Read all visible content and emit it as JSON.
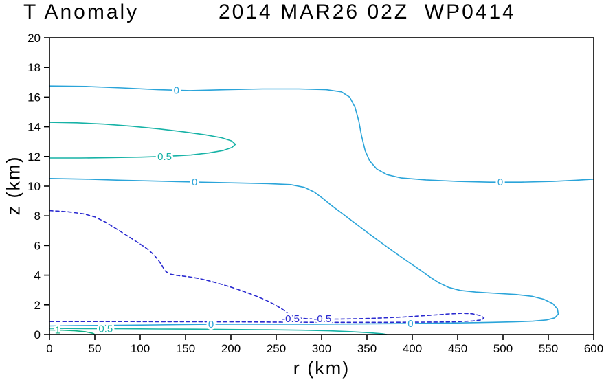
{
  "chart_data": {
    "type": "contour",
    "title_left": "T Anomaly",
    "title_right": "2014 MAR26 02Z  WP0414",
    "xlabel": "r (km)",
    "ylabel": "z (km)",
    "xlim": [
      0,
      600
    ],
    "ylim": [
      0,
      20
    ],
    "x_ticks": [
      0,
      50,
      100,
      150,
      200,
      250,
      300,
      350,
      400,
      450,
      500,
      550,
      600
    ],
    "y_ticks": [
      0,
      2,
      4,
      6,
      8,
      10,
      12,
      14,
      16,
      18,
      20
    ],
    "grid": false,
    "frame_color": "#000000",
    "contours": [
      {
        "level": 0,
        "label": "0",
        "color": "#2aa4d9",
        "style": "solid",
        "labels": [
          [
            140,
            16.45
          ],
          [
            497,
            10.28
          ]
        ],
        "points": [
          [
            0,
            16.75
          ],
          [
            40,
            16.72
          ],
          [
            80,
            16.62
          ],
          [
            120,
            16.5
          ],
          [
            155,
            16.44
          ],
          [
            195,
            16.5
          ],
          [
            235,
            16.55
          ],
          [
            275,
            16.55
          ],
          [
            305,
            16.5
          ],
          [
            322,
            16.35
          ],
          [
            331,
            16.0
          ],
          [
            337,
            15.3
          ],
          [
            341,
            14.4
          ],
          [
            344,
            13.4
          ],
          [
            348,
            12.4
          ],
          [
            353,
            11.7
          ],
          [
            361,
            11.15
          ],
          [
            372,
            10.78
          ],
          [
            388,
            10.55
          ],
          [
            415,
            10.42
          ],
          [
            450,
            10.32
          ],
          [
            485,
            10.27
          ],
          [
            520,
            10.27
          ],
          [
            555,
            10.32
          ],
          [
            580,
            10.4
          ],
          [
            600,
            10.47
          ]
        ]
      },
      {
        "level": 0,
        "label": "0",
        "color": "#2aa4d9",
        "style": "solid",
        "labels": [
          [
            160,
            10.27
          ],
          [
            178,
            0.7
          ],
          [
            398,
            0.75
          ]
        ],
        "points": [
          [
            0,
            10.52
          ],
          [
            40,
            10.47
          ],
          [
            80,
            10.4
          ],
          [
            120,
            10.34
          ],
          [
            160,
            10.28
          ],
          [
            200,
            10.22
          ],
          [
            240,
            10.17
          ],
          [
            266,
            10.1
          ],
          [
            281,
            9.92
          ],
          [
            292,
            9.6
          ],
          [
            302,
            9.15
          ],
          [
            312,
            8.65
          ],
          [
            324,
            8.1
          ],
          [
            337,
            7.5
          ],
          [
            351,
            6.85
          ],
          [
            365,
            6.22
          ],
          [
            379,
            5.6
          ],
          [
            393,
            5.0
          ],
          [
            407,
            4.42
          ],
          [
            419,
            3.9
          ],
          [
            429,
            3.5
          ],
          [
            440,
            3.18
          ],
          [
            453,
            2.97
          ],
          [
            470,
            2.86
          ],
          [
            492,
            2.78
          ],
          [
            514,
            2.7
          ],
          [
            532,
            2.58
          ],
          [
            545,
            2.38
          ],
          [
            555,
            2.08
          ],
          [
            560,
            1.72
          ],
          [
            561,
            1.38
          ],
          [
            557,
            1.12
          ],
          [
            548,
            0.98
          ],
          [
            533,
            0.9
          ],
          [
            512,
            0.85
          ],
          [
            488,
            0.82
          ],
          [
            462,
            0.79
          ],
          [
            436,
            0.77
          ],
          [
            410,
            0.75
          ],
          [
            384,
            0.73
          ],
          [
            356,
            0.72
          ],
          [
            326,
            0.71
          ],
          [
            296,
            0.7
          ],
          [
            266,
            0.7
          ],
          [
            236,
            0.7
          ],
          [
            206,
            0.7
          ],
          [
            176,
            0.69
          ],
          [
            146,
            0.67
          ],
          [
            116,
            0.65
          ],
          [
            86,
            0.63
          ],
          [
            56,
            0.61
          ],
          [
            28,
            0.6
          ],
          [
            0,
            0.58
          ]
        ]
      },
      {
        "level": 0.5,
        "label": "0.5",
        "color": "#16b2a6",
        "style": "solid",
        "labels": [
          [
            127,
            12.0
          ]
        ],
        "points": [
          [
            0,
            14.3
          ],
          [
            30,
            14.27
          ],
          [
            60,
            14.18
          ],
          [
            90,
            14.04
          ],
          [
            120,
            13.86
          ],
          [
            148,
            13.66
          ],
          [
            172,
            13.46
          ],
          [
            190,
            13.26
          ],
          [
            201,
            13.04
          ],
          [
            205,
            12.82
          ],
          [
            201,
            12.6
          ],
          [
            191,
            12.4
          ],
          [
            176,
            12.24
          ],
          [
            156,
            12.1
          ],
          [
            131,
            12.02
          ],
          [
            101,
            11.96
          ],
          [
            68,
            11.92
          ],
          [
            34,
            11.9
          ],
          [
            0,
            11.9
          ]
        ]
      },
      {
        "level": 0.5,
        "label": "0.5",
        "color": "#16b2a6",
        "style": "solid",
        "labels": [
          [
            62,
            0.4
          ]
        ],
        "points": [
          [
            0,
            0.42
          ],
          [
            40,
            0.4
          ],
          [
            80,
            0.39
          ],
          [
            120,
            0.37
          ],
          [
            160,
            0.36
          ],
          [
            200,
            0.34
          ],
          [
            240,
            0.32
          ],
          [
            278,
            0.29
          ],
          [
            308,
            0.25
          ],
          [
            333,
            0.19
          ],
          [
            353,
            0.12
          ],
          [
            367,
            0.05
          ],
          [
            372,
            0.0
          ]
        ]
      },
      {
        "level": 1,
        "label": "1",
        "color": "#0fb286",
        "style": "solid",
        "labels": [
          [
            9,
            0.3
          ]
        ],
        "points": [
          [
            0,
            0.3
          ],
          [
            14,
            0.29
          ],
          [
            28,
            0.25
          ],
          [
            40,
            0.18
          ],
          [
            48,
            0.08
          ],
          [
            50,
            0.0
          ]
        ]
      },
      {
        "level": -0.5,
        "label": "-0.5",
        "color": "#2a2ad0",
        "style": "dashed",
        "labels": [
          [
            266,
            1.06
          ],
          [
            301,
            1.06
          ]
        ],
        "points": [
          [
            0,
            8.35
          ],
          [
            20,
            8.28
          ],
          [
            38,
            8.13
          ],
          [
            50,
            7.93
          ],
          [
            61,
            7.6
          ],
          [
            73,
            7.15
          ],
          [
            86,
            6.65
          ],
          [
            98,
            6.18
          ],
          [
            108,
            5.76
          ],
          [
            115,
            5.38
          ],
          [
            120,
            5.02
          ],
          [
            124,
            4.66
          ],
          [
            127,
            4.32
          ],
          [
            132,
            4.08
          ],
          [
            141,
            3.98
          ],
          [
            153,
            3.9
          ],
          [
            165,
            3.78
          ],
          [
            177,
            3.6
          ],
          [
            189,
            3.4
          ],
          [
            201,
            3.18
          ],
          [
            213,
            2.93
          ],
          [
            225,
            2.66
          ],
          [
            237,
            2.36
          ],
          [
            248,
            2.03
          ],
          [
            257,
            1.7
          ],
          [
            263,
            1.44
          ],
          [
            268,
            1.24
          ],
          [
            275,
            1.12
          ],
          [
            285,
            1.06
          ],
          [
            300,
            1.04
          ],
          [
            318,
            1.04
          ],
          [
            336,
            1.06
          ],
          [
            354,
            1.09
          ],
          [
            372,
            1.13
          ],
          [
            390,
            1.18
          ],
          [
            408,
            1.25
          ],
          [
            425,
            1.32
          ],
          [
            441,
            1.39
          ],
          [
            455,
            1.43
          ],
          [
            466,
            1.4
          ],
          [
            475,
            1.28
          ],
          [
            479,
            1.13
          ],
          [
            477,
            0.99
          ],
          [
            467,
            0.91
          ],
          [
            450,
            0.86
          ],
          [
            428,
            0.84
          ],
          [
            402,
            0.83
          ],
          [
            372,
            0.82
          ],
          [
            340,
            0.82
          ],
          [
            308,
            0.82
          ],
          [
            276,
            0.83
          ],
          [
            244,
            0.84
          ],
          [
            212,
            0.85
          ],
          [
            180,
            0.85
          ],
          [
            148,
            0.86
          ],
          [
            116,
            0.86
          ],
          [
            84,
            0.87
          ],
          [
            52,
            0.87
          ],
          [
            20,
            0.87
          ],
          [
            0,
            0.87
          ]
        ]
      }
    ]
  }
}
